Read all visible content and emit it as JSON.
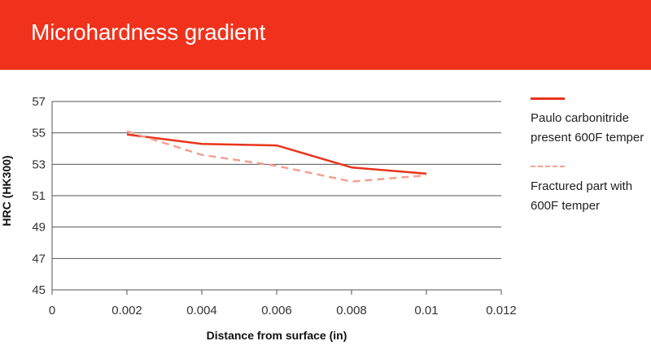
{
  "header": {
    "title": "Microhardness gradient"
  },
  "colors": {
    "header_bg": "#f0321c",
    "series1": "#e8341c",
    "series2": "#f4a08f"
  },
  "chart_data": {
    "type": "line",
    "title": "Microhardness gradient",
    "xlabel": "Distance from surface (in)",
    "ylabel": "HRC (HK300)",
    "xlim": [
      0,
      0.012
    ],
    "ylim": [
      45,
      57
    ],
    "x_ticks": [
      "0",
      "0.002",
      "0.004",
      "0.006",
      "0.008",
      "0.01",
      "0.012"
    ],
    "y_ticks": [
      "45",
      "47",
      "49",
      "51",
      "53",
      "55",
      "57"
    ],
    "grid": "horizontal",
    "legend_position": "right",
    "series": [
      {
        "name": "Paulo carbonitride present 600F temper",
        "style": "solid",
        "color": "#e8341c",
        "x": [
          0.002,
          0.004,
          0.006,
          0.008,
          0.01
        ],
        "y": [
          54.9,
          54.3,
          54.2,
          52.8,
          52.4
        ]
      },
      {
        "name": "Fractured part with 600F temper",
        "style": "dashed",
        "color": "#f4a08f",
        "x": [
          0.002,
          0.004,
          0.006,
          0.008,
          0.01
        ],
        "y": [
          55.1,
          53.6,
          52.9,
          51.9,
          52.3
        ]
      }
    ]
  }
}
